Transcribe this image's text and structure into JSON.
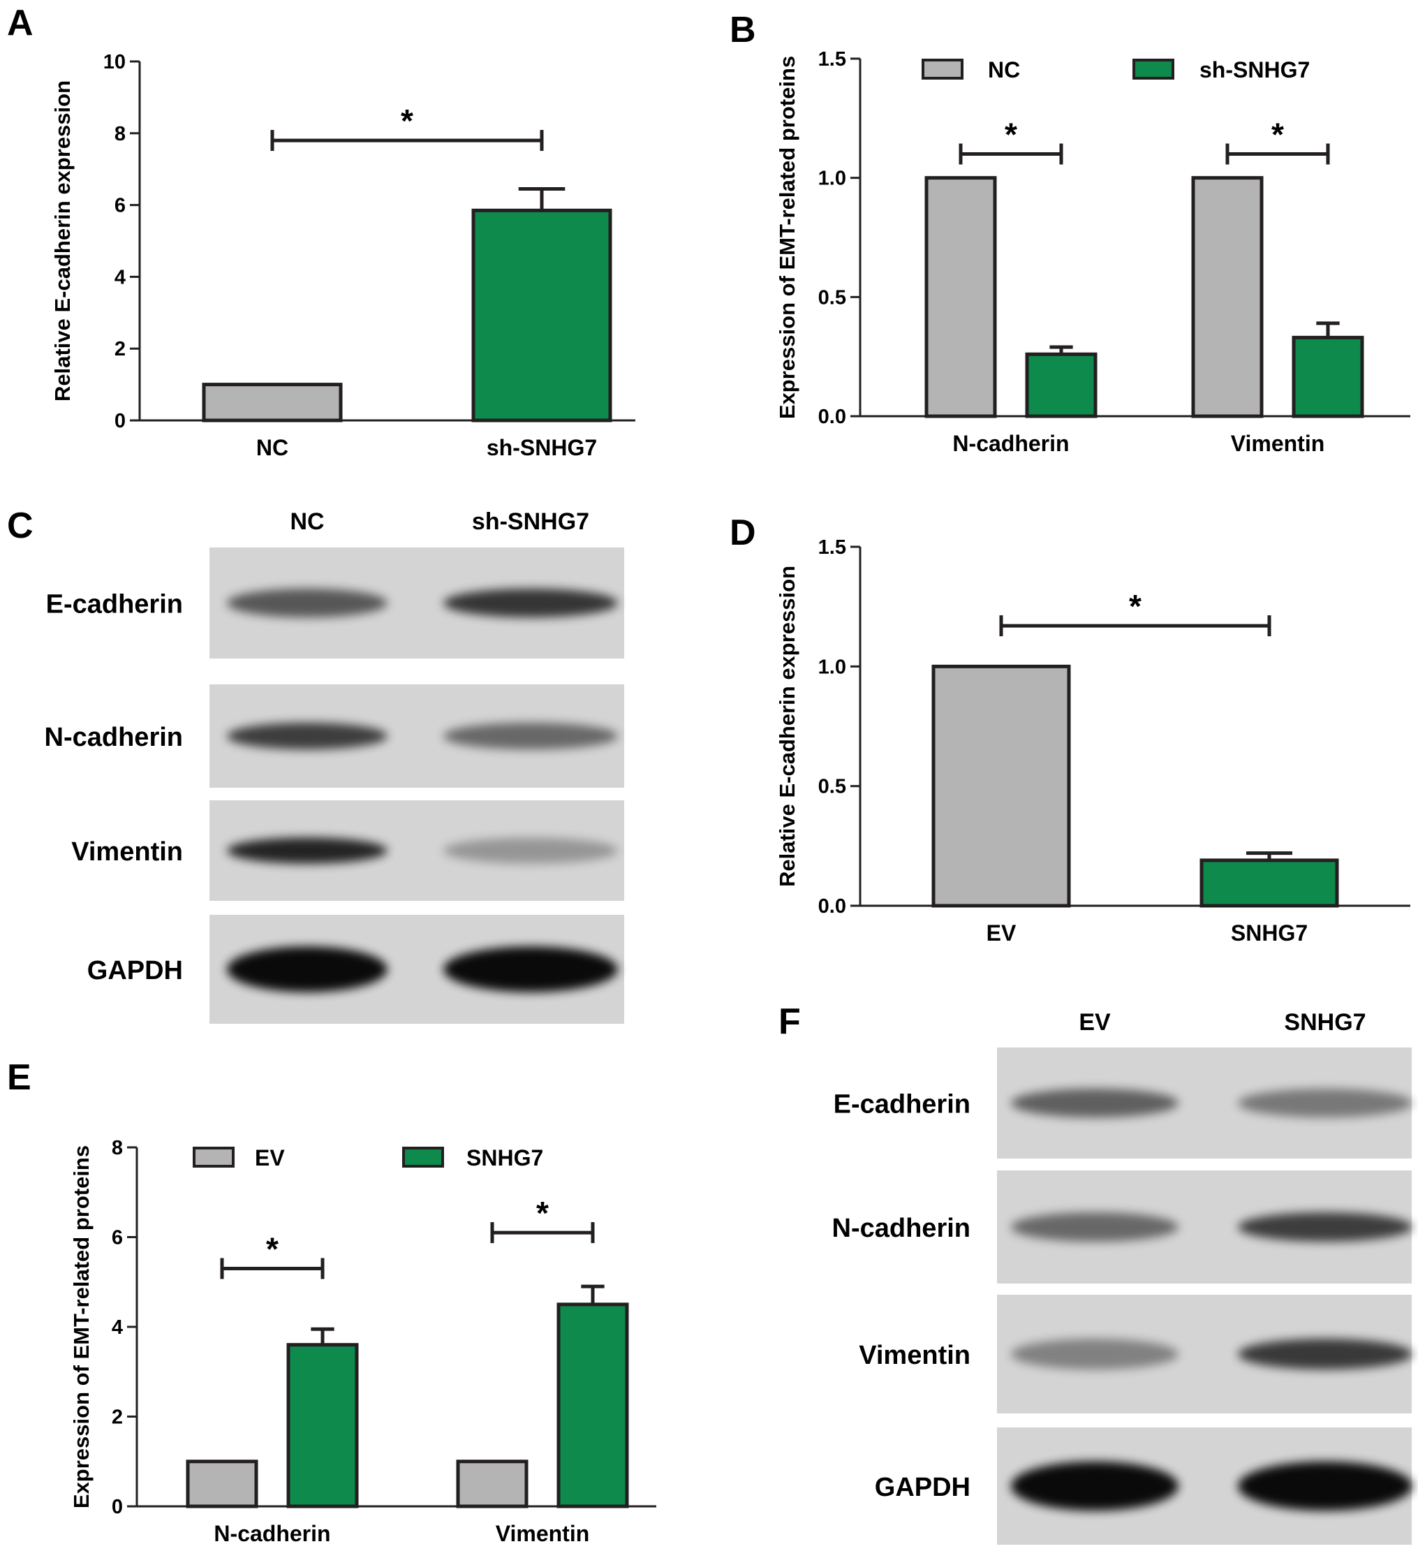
{
  "colors": {
    "gray": "#b4b4b4",
    "green": "#0e8a4d",
    "stroke": "#231f20"
  },
  "chart_data": [
    {
      "panel": "A",
      "type": "bar",
      "ylabel": "Relative E-cadherin expression",
      "ylim": [
        0,
        10
      ],
      "yticks": [
        "0",
        "2",
        "4",
        "6",
        "8",
        "10"
      ],
      "categories": [
        "NC",
        "sh-SNHG7"
      ],
      "values": [
        1.0,
        5.85
      ],
      "errors": [
        0,
        0.6
      ],
      "colors": [
        "gray",
        "green"
      ],
      "significance": [
        {
          "label": "*",
          "from": 0,
          "to": 1,
          "y": 7.8
        }
      ]
    },
    {
      "panel": "B",
      "type": "bar",
      "ylabel": "Expression of EMT-related proteins",
      "ylim": [
        0,
        1.5
      ],
      "yticks": [
        "0.0",
        "0.5",
        "1.0",
        "1.5"
      ],
      "categories": [
        "N-cadherin",
        "Vimentin"
      ],
      "series": [
        {
          "name": "NC",
          "color": "gray",
          "values": [
            1.0,
            1.0
          ],
          "errors": [
            0,
            0
          ]
        },
        {
          "name": "sh-SNHG7",
          "color": "green",
          "values": [
            0.26,
            0.33
          ],
          "errors": [
            0.03,
            0.06
          ]
        }
      ],
      "legend": "top",
      "significance": [
        {
          "label": "*",
          "category": 0,
          "y": 1.1
        },
        {
          "label": "*",
          "category": 1,
          "y": 1.1
        }
      ]
    },
    {
      "panel": "D",
      "type": "bar",
      "ylabel": "Relative E-cadherin expression",
      "ylim": [
        0,
        1.5
      ],
      "yticks": [
        "0.0",
        "0.5",
        "1.0",
        "1.5"
      ],
      "categories": [
        "EV",
        "SNHG7"
      ],
      "values": [
        1.0,
        0.19
      ],
      "errors": [
        0,
        0.03
      ],
      "colors": [
        "gray",
        "green"
      ],
      "significance": [
        {
          "label": "*",
          "from": 0,
          "to": 1,
          "y": 1.17
        }
      ]
    },
    {
      "panel": "E",
      "type": "bar",
      "ylabel": "Expression of EMT-related proteins",
      "ylim": [
        0,
        8
      ],
      "yticks": [
        "0",
        "2",
        "4",
        "6",
        "8"
      ],
      "categories": [
        "N-cadherin",
        "Vimentin"
      ],
      "series": [
        {
          "name": "EV",
          "color": "gray",
          "values": [
            1.0,
            1.0
          ],
          "errors": [
            0,
            0
          ]
        },
        {
          "name": "SNHG7",
          "color": "green",
          "values": [
            3.6,
            4.5
          ],
          "errors": [
            0.35,
            0.4
          ]
        }
      ],
      "legend": "top",
      "significance": [
        {
          "label": "*",
          "category": 0,
          "y": 5.3
        },
        {
          "label": "*",
          "category": 1,
          "y": 6.1
        }
      ]
    }
  ],
  "blots": [
    {
      "panel": "C",
      "lanes": [
        "NC",
        "sh-SNHG7"
      ],
      "rows": [
        {
          "label": "E-cadherin",
          "intensity": [
            0.55,
            0.75
          ]
        },
        {
          "label": "N-cadherin",
          "intensity": [
            0.7,
            0.45
          ]
        },
        {
          "label": "Vimentin",
          "intensity": [
            0.85,
            0.18
          ]
        },
        {
          "label": "GAPDH",
          "intensity": [
            1.0,
            1.0
          ]
        }
      ]
    },
    {
      "panel": "F",
      "lanes": [
        "EV",
        "SNHG7"
      ],
      "rows": [
        {
          "label": "E-cadherin",
          "intensity": [
            0.5,
            0.35
          ]
        },
        {
          "label": "N-cadherin",
          "intensity": [
            0.45,
            0.7
          ]
        },
        {
          "label": "Vimentin",
          "intensity": [
            0.3,
            0.72
          ]
        },
        {
          "label": "GAPDH",
          "intensity": [
            1.0,
            1.0
          ]
        }
      ]
    }
  ]
}
